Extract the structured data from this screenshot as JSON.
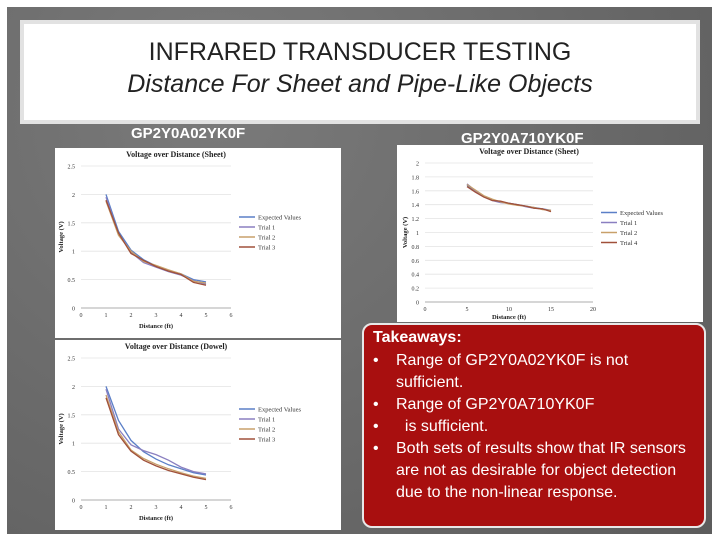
{
  "title": {
    "line1": "INFRARED TRANSDUCER TESTING",
    "line2": "Distance For Sheet and Pipe-Like Objects"
  },
  "labels": {
    "left": "GP2Y0A02YK0F",
    "right": "GP2Y0A710YK0F"
  },
  "takeaways": {
    "heading": "Takeaways:",
    "items": [
      {
        "bullet": "•",
        "text": "Range of GP2Y0A02YK0F is not sufficient."
      },
      {
        "bullet": "•",
        "text": "Range of GP2Y0A710YK0F"
      },
      {
        "bullet": "•",
        "text": "  is sufficient."
      },
      {
        "bullet": "•",
        "text": "Both sets of results show that IR sensors are not as desirable for object detection due to the non-linear response."
      }
    ]
  },
  "colors": {
    "expected": "#5b7fc7",
    "trial1": "#8a7fc0",
    "trial2": "#c8a06a",
    "trial3": "#a0503a",
    "slide": "#6f6f6f",
    "takeaway_bg": "#a80f0f"
  },
  "chart_data": [
    {
      "type": "line",
      "title": "Voltage over Distance (Sheet)",
      "xlabel": "Distance (ft)",
      "ylabel": "Voltage (V)",
      "xlim": [
        0,
        6
      ],
      "ylim": [
        0,
        2.5
      ],
      "xticks": [
        0,
        1,
        2,
        3,
        4,
        5,
        6
      ],
      "yticks": [
        0,
        0.5,
        1,
        1.5,
        2,
        2.5
      ],
      "legend": "right",
      "x": [
        1,
        1.5,
        2,
        2.5,
        3,
        3.5,
        4,
        4.5,
        5
      ],
      "series": [
        {
          "name": "Expected Values",
          "color_key": "expected",
          "values": [
            2.0,
            1.35,
            1.02,
            0.85,
            0.74,
            0.66,
            0.6,
            0.5,
            0.46
          ]
        },
        {
          "name": "Trial 1",
          "color_key": "trial1",
          "values": [
            1.95,
            1.3,
            0.98,
            0.8,
            0.72,
            0.64,
            0.58,
            0.48,
            0.42
          ]
        },
        {
          "name": "Trial 2",
          "color_key": "trial2",
          "values": [
            1.88,
            1.28,
            1.0,
            0.82,
            0.75,
            0.67,
            0.6,
            0.47,
            0.44
          ]
        },
        {
          "name": "Trial 3",
          "color_key": "trial3",
          "values": [
            1.9,
            1.32,
            0.96,
            0.84,
            0.73,
            0.65,
            0.59,
            0.45,
            0.4
          ]
        }
      ]
    },
    {
      "type": "line",
      "title": "Voltage over Distance (Sheet)",
      "xlabel": "Distance (ft)",
      "ylabel": "Voltage (V)",
      "xlim": [
        0,
        20
      ],
      "ylim": [
        0,
        2
      ],
      "xticks": [
        0,
        5,
        10,
        15,
        20
      ],
      "yticks": [
        0,
        0.2,
        0.4,
        0.6,
        0.8,
        1,
        1.2,
        1.4,
        1.6,
        1.8,
        2
      ],
      "ytick_labels": [
        "0",
        "0.2",
        "0.4",
        "0.6",
        "0.8",
        "1",
        "1.2",
        "1.4",
        "1.6",
        "1.8",
        "2"
      ],
      "legend": "right",
      "x": [
        5,
        6,
        7,
        8,
        9,
        10,
        11,
        12,
        13,
        14,
        15
      ],
      "series": [
        {
          "name": "Expected Values",
          "color_key": "expected",
          "values": [
            1.68,
            1.6,
            1.52,
            1.47,
            1.44,
            1.42,
            1.4,
            1.38,
            1.36,
            1.34,
            1.32
          ]
        },
        {
          "name": "Trial 1",
          "color_key": "trial1",
          "values": [
            1.7,
            1.6,
            1.52,
            1.46,
            1.43,
            1.42,
            1.4,
            1.37,
            1.35,
            1.34,
            1.31
          ]
        },
        {
          "name": "Trial 2",
          "color_key": "trial2",
          "values": [
            1.69,
            1.61,
            1.53,
            1.48,
            1.44,
            1.41,
            1.39,
            1.38,
            1.36,
            1.33,
            1.32
          ]
        },
        {
          "name": "Trial 4",
          "color_key": "trial3",
          "values": [
            1.66,
            1.58,
            1.51,
            1.46,
            1.45,
            1.42,
            1.4,
            1.38,
            1.35,
            1.34,
            1.3
          ]
        }
      ]
    },
    {
      "type": "line",
      "title": "Voltage over Distance (Dowel)",
      "xlabel": "Distance (ft)",
      "ylabel": "Voltage (V)",
      "xlim": [
        0,
        6
      ],
      "ylim": [
        0,
        2.5
      ],
      "xticks": [
        0,
        1,
        2,
        3,
        4,
        5,
        6
      ],
      "yticks": [
        0,
        0.5,
        1,
        1.5,
        2,
        2.5
      ],
      "legend": "right",
      "x": [
        1,
        1.5,
        2,
        2.5,
        3,
        3.5,
        4,
        4.5,
        5
      ],
      "series": [
        {
          "name": "Expected Values",
          "color_key": "expected",
          "values": [
            2.0,
            1.4,
            1.05,
            0.85,
            0.72,
            0.62,
            0.55,
            0.48,
            0.44
          ]
        },
        {
          "name": "Trial 1",
          "color_key": "trial1",
          "values": [
            1.95,
            1.25,
            0.97,
            0.87,
            0.8,
            0.7,
            0.58,
            0.5,
            0.46
          ]
        },
        {
          "name": "Trial 2",
          "color_key": "trial2",
          "values": [
            1.85,
            1.2,
            0.88,
            0.73,
            0.63,
            0.55,
            0.48,
            0.42,
            0.38
          ]
        },
        {
          "name": "Trial 3",
          "color_key": "trial3",
          "values": [
            1.8,
            1.15,
            0.86,
            0.7,
            0.6,
            0.52,
            0.46,
            0.4,
            0.36
          ]
        }
      ]
    }
  ]
}
